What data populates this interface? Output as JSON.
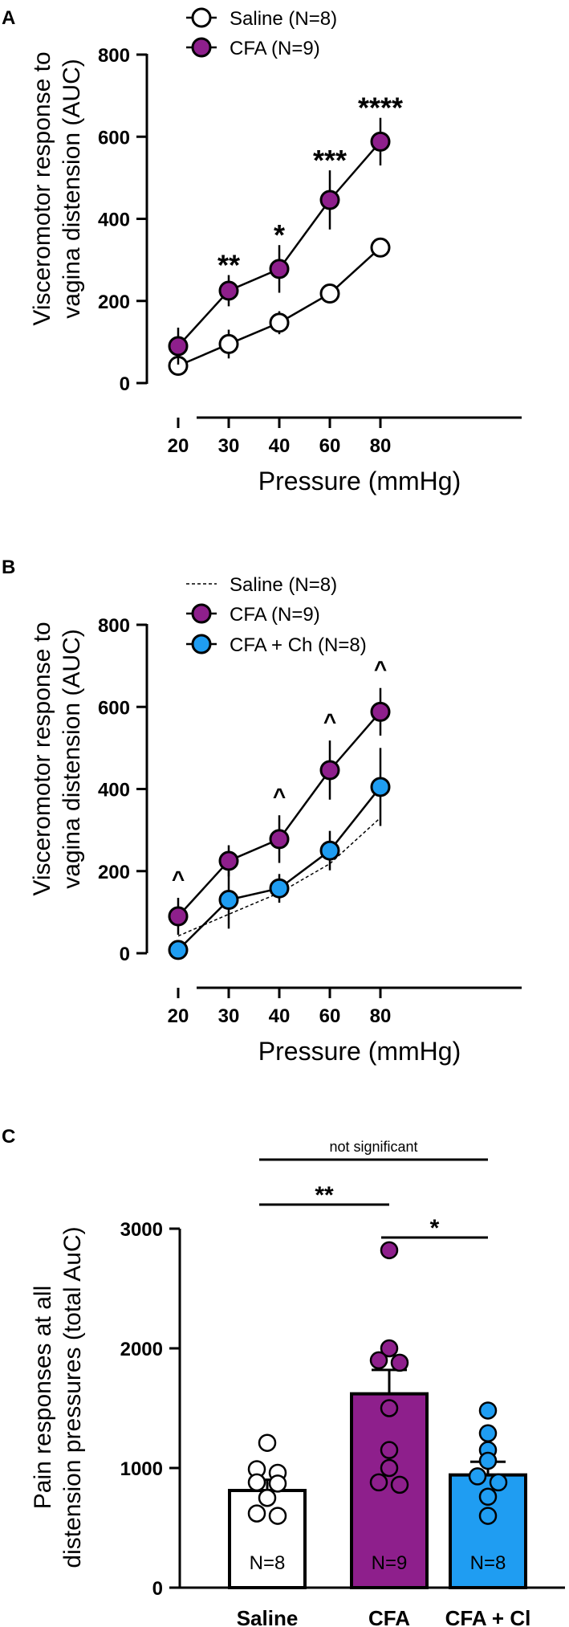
{
  "colors": {
    "saline": "#ffffff",
    "cfa": "#8e1f8c",
    "ch": "#1f9df2",
    "stroke": "#000000"
  },
  "chart_data": [
    {
      "panel": "A",
      "type": "line",
      "ylabel": "Visceromotor response to vagina distension (AUC)",
      "ylabel_lines": [
        "Visceromotor response to",
        "vagina distension (AUC)"
      ],
      "xlabel": "Pressure (mmHg)",
      "categories": [
        "20",
        "30",
        "40",
        "60",
        "80"
      ],
      "ylim": [
        0,
        800
      ],
      "yticks": [
        "0",
        "200",
        "400",
        "600",
        "800"
      ],
      "series": [
        {
          "name": "Saline",
          "legend": "Saline (N=8)",
          "values": [
            42,
            95,
            147,
            218,
            330
          ],
          "err": [
            18,
            35,
            28,
            15,
            12
          ]
        },
        {
          "name": "CFA",
          "legend": "CFA  (N=9)",
          "values": [
            90,
            225,
            278,
            446,
            588
          ],
          "err": [
            45,
            38,
            58,
            72,
            58
          ]
        }
      ],
      "annotations": [
        "",
        "**",
        "*",
        "***",
        "****"
      ]
    },
    {
      "panel": "B",
      "type": "line",
      "ylabel": "Visceromotor response to vagina distension (AUC)",
      "ylabel_lines": [
        "Visceromotor response to",
        "vagina distension (AUC)"
      ],
      "xlabel": "Pressure (mmHg)",
      "categories": [
        "20",
        "30",
        "40",
        "60",
        "80"
      ],
      "ylim": [
        0,
        800
      ],
      "yticks": [
        "0",
        "200",
        "400",
        "600",
        "800"
      ],
      "series": [
        {
          "name": "Saline",
          "legend": "Saline (N=8)",
          "style": "dashed",
          "values": [
            42,
            95,
            147,
            218,
            330
          ]
        },
        {
          "name": "CFA",
          "legend": "CFA  (N=9)",
          "values": [
            90,
            225,
            278,
            446,
            588
          ],
          "err": [
            45,
            38,
            58,
            72,
            58
          ]
        },
        {
          "name": "CFA + Ch",
          "legend": "CFA + Ch (N=8)",
          "values": [
            8,
            130,
            158,
            250,
            405
          ],
          "err": [
            8,
            70,
            35,
            48,
            95
          ]
        }
      ],
      "annotations": [
        "^",
        "",
        "^",
        "^",
        "^"
      ]
    },
    {
      "panel": "C",
      "type": "bar",
      "ylabel": "Pain responses at all distension pressures (total AuC)",
      "ylabel_lines": [
        "Pain responses at all",
        "distension pressures (total AuC)"
      ],
      "categories": [
        "Saline",
        "CFA",
        "CFA + Cl"
      ],
      "values": [
        812,
        1620,
        942
      ],
      "err": [
        90,
        200,
        110
      ],
      "n_labels": [
        "N=8",
        "N=9",
        "N=8"
      ],
      "points": [
        [
          1210,
          990,
          960,
          880,
          870,
          750,
          620,
          600
        ],
        [
          2820,
          2000,
          1900,
          1880,
          1500,
          1150,
          1000,
          880,
          860
        ],
        [
          1480,
          1290,
          1150,
          1060,
          930,
          880,
          760,
          600
        ]
      ],
      "ylim": [
        0,
        3000
      ],
      "yticks": [
        "0",
        "1000",
        "2000",
        "3000"
      ],
      "comparisons": [
        {
          "from": 0,
          "to": 2,
          "label": "not significant"
        },
        {
          "from": 0,
          "to": 1,
          "label": "**"
        },
        {
          "from": 1,
          "to": 2,
          "label": "*"
        }
      ]
    }
  ]
}
